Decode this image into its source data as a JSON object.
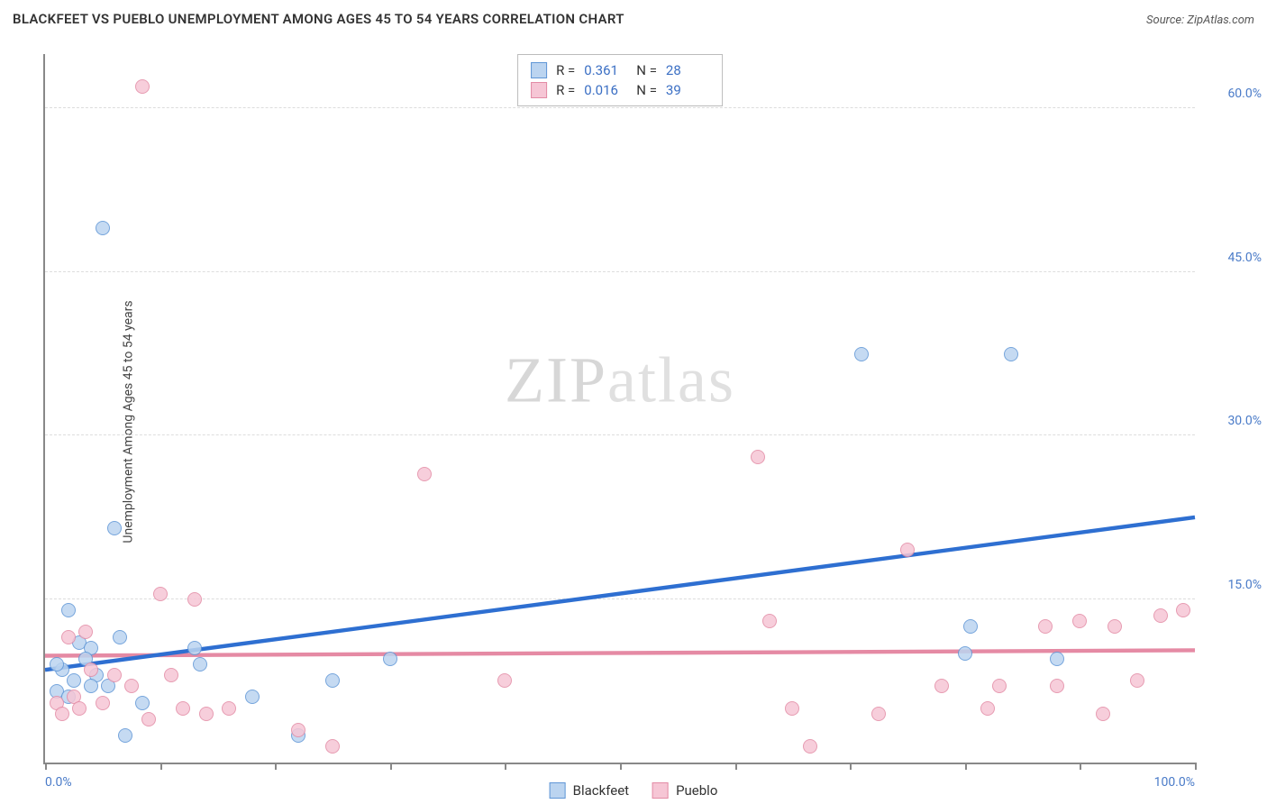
{
  "title": "BLACKFEET VS PUEBLO UNEMPLOYMENT AMONG AGES 45 TO 54 YEARS CORRELATION CHART",
  "source_label": "Source: ZipAtlas.com",
  "watermark": {
    "bold": "ZIP",
    "light": "atlas"
  },
  "ylabel": "Unemployment Among Ages 45 to 54 years",
  "chart": {
    "type": "scatter",
    "xlim": [
      0,
      100
    ],
    "ylim": [
      0,
      65
    ],
    "x_ticks": [
      0,
      10,
      20,
      30,
      40,
      50,
      60,
      70,
      80,
      90,
      100
    ],
    "x_tick_labels_visible": {
      "0": "0.0%",
      "100": "100.0%"
    },
    "y_ticks": [
      15,
      30,
      45,
      60
    ],
    "y_tick_labels": {
      "15": "15.0%",
      "30": "30.0%",
      "45": "45.0%",
      "60": "60.0%"
    },
    "grid_color": "#dddddd",
    "axis_color": "#888888",
    "background_color": "#ffffff",
    "point_radius": 8,
    "series": [
      {
        "name": "Blackfeet",
        "fill": "#bbd4f0",
        "stroke": "#5f96d6",
        "stats": {
          "R": "0.361",
          "N": "28"
        },
        "trend": {
          "x1": 0,
          "y1": 8.5,
          "x2": 100,
          "y2": 22.5,
          "color": "#2e6fd1",
          "width": 2
        },
        "points": [
          [
            5,
            49
          ],
          [
            2,
            14
          ],
          [
            3,
            11
          ],
          [
            4,
            10.5
          ],
          [
            6,
            21.5
          ],
          [
            1.5,
            8.5
          ],
          [
            1,
            9
          ],
          [
            2.5,
            7.5
          ],
          [
            4.5,
            8
          ],
          [
            5.5,
            7
          ],
          [
            8.5,
            5.5
          ],
          [
            7,
            2.5
          ],
          [
            13,
            10.5
          ],
          [
            13.5,
            9
          ],
          [
            18,
            6
          ],
          [
            22,
            2.5
          ],
          [
            25,
            7.5
          ],
          [
            30,
            9.5
          ],
          [
            71,
            37.5
          ],
          [
            80.5,
            12.5
          ],
          [
            80,
            10
          ],
          [
            84,
            37.5
          ],
          [
            88,
            9.5
          ],
          [
            1,
            6.5
          ],
          [
            2,
            6
          ],
          [
            3.5,
            9.5
          ],
          [
            4,
            7
          ],
          [
            6.5,
            11.5
          ]
        ]
      },
      {
        "name": "Pueblo",
        "fill": "#f6c6d5",
        "stroke": "#e38ba5",
        "stats": {
          "R": "0.016",
          "N": "39"
        },
        "trend": {
          "x1": 0,
          "y1": 9.8,
          "x2": 100,
          "y2": 10.3,
          "color": "#e58aa4",
          "width": 2
        },
        "points": [
          [
            8.5,
            62
          ],
          [
            1,
            5.5
          ],
          [
            1.5,
            4.5
          ],
          [
            2,
            11.5
          ],
          [
            2.5,
            6
          ],
          [
            3,
            5
          ],
          [
            3.5,
            12
          ],
          [
            4,
            8.5
          ],
          [
            5,
            5.5
          ],
          [
            6,
            8
          ],
          [
            7.5,
            7
          ],
          [
            9,
            4
          ],
          [
            10,
            15.5
          ],
          [
            11,
            8
          ],
          [
            12,
            5
          ],
          [
            13,
            15
          ],
          [
            14,
            4.5
          ],
          [
            16,
            5
          ],
          [
            22,
            3
          ],
          [
            25,
            1.5
          ],
          [
            33,
            26.5
          ],
          [
            40,
            7.5
          ],
          [
            62,
            28
          ],
          [
            63,
            13
          ],
          [
            65,
            5
          ],
          [
            66.5,
            1.5
          ],
          [
            72.5,
            4.5
          ],
          [
            75,
            19.5
          ],
          [
            78,
            7
          ],
          [
            82,
            5
          ],
          [
            83,
            7
          ],
          [
            87,
            12.5
          ],
          [
            88,
            7
          ],
          [
            90,
            13
          ],
          [
            92,
            4.5
          ],
          [
            93,
            12.5
          ],
          [
            95,
            7.5
          ],
          [
            97,
            13.5
          ],
          [
            99,
            14
          ]
        ]
      }
    ]
  },
  "legend": {
    "items": [
      {
        "label": "Blackfeet",
        "fill": "#bbd4f0",
        "stroke": "#5f96d6"
      },
      {
        "label": "Pueblo",
        "fill": "#f6c6d5",
        "stroke": "#e38ba5"
      }
    ]
  }
}
